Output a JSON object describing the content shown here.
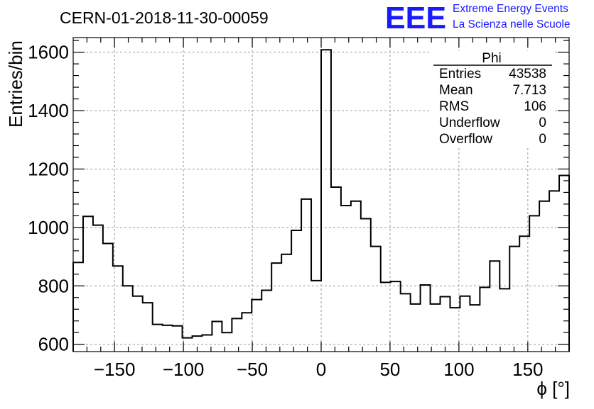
{
  "title": "CERN-01-2018-11-30-00059",
  "logo": {
    "mark": "EEE",
    "line1": "Extreme Energy Events",
    "line2": "La Scienza nelle Scuole",
    "color": "#1a1aff"
  },
  "stats": {
    "name": "Phi",
    "rows": [
      {
        "label": "Entries",
        "value": "43538"
      },
      {
        "label": "Mean",
        "value": "7.713"
      },
      {
        "label": "RMS",
        "value": "106"
      },
      {
        "label": "Underflow",
        "value": "0"
      },
      {
        "label": "Overflow",
        "value": "0"
      }
    ]
  },
  "chart_data": {
    "type": "bar",
    "subtype": "histogram-step",
    "xlabel": "ϕ [°]",
    "ylabel": "Entries/bin",
    "xlim": [
      -180,
      180
    ],
    "ylim": [
      575,
      1650
    ],
    "grid": true,
    "bin_width": 7.2,
    "xticks": [
      -150,
      -100,
      -50,
      0,
      50,
      100,
      150
    ],
    "xtick_labels": [
      "−150",
      "−100",
      "−50",
      "0",
      "50",
      "100",
      "150"
    ],
    "yticks": [
      600,
      800,
      1000,
      1200,
      1400,
      1600
    ],
    "ytick_labels": [
      "600",
      "800",
      "1000",
      "1200",
      "1400",
      "1600"
    ],
    "values": [
      880,
      1038,
      1008,
      945,
      868,
      800,
      765,
      742,
      668,
      665,
      663,
      622,
      628,
      632,
      678,
      640,
      688,
      708,
      753,
      785,
      878,
      908,
      990,
      1097,
      818,
      1608,
      1138,
      1075,
      1090,
      1030,
      935,
      812,
      815,
      773,
      738,
      803,
      738,
      763,
      725,
      765,
      735,
      795,
      885,
      790,
      935,
      970,
      1040,
      1090,
      1125,
      1178
    ]
  }
}
